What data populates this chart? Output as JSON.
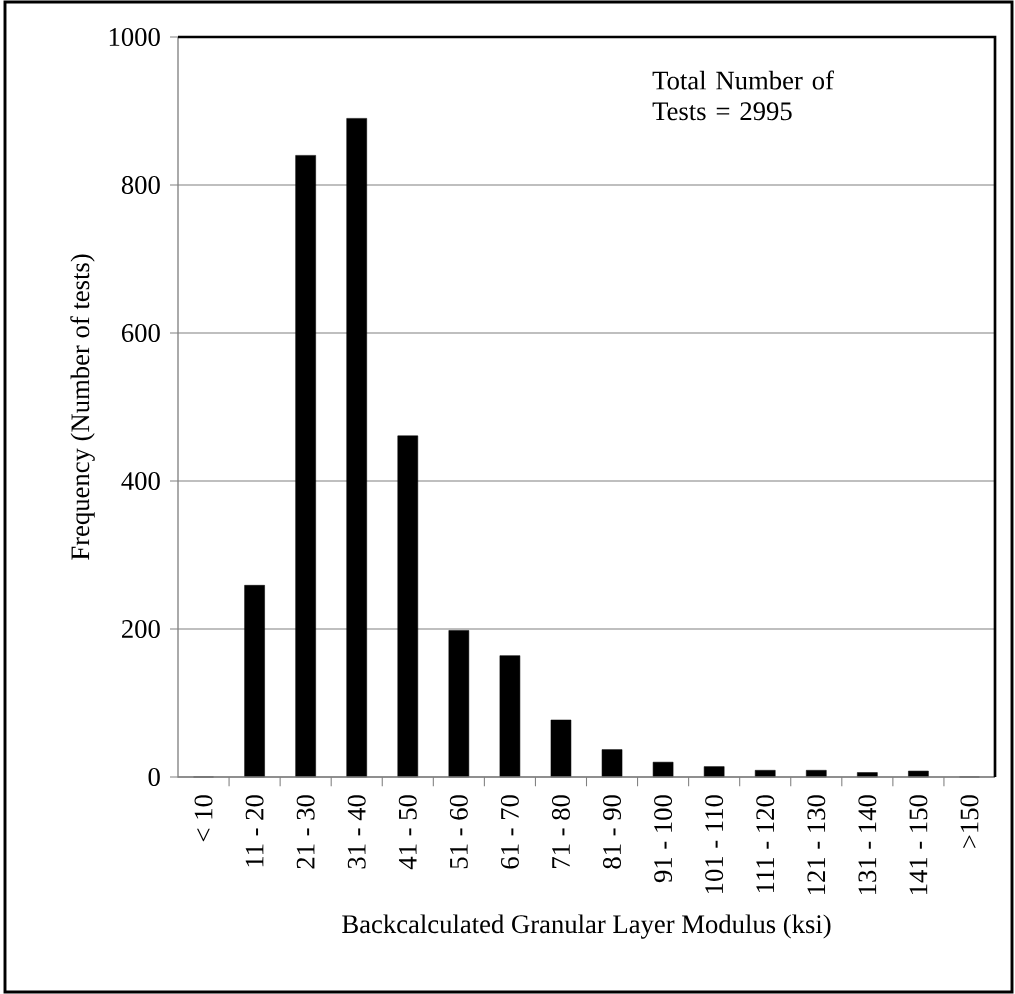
{
  "chart_data": {
    "type": "bar",
    "xlabel": "Backcalculated Granular Layer Modulus (ksi)",
    "ylabel": "Frequency (Number of tests)",
    "annotations": [
      "Total Number of Tests = 2995"
    ],
    "categories": [
      "< 10",
      "11 - 20",
      "21 - 30",
      "31 - 40",
      "41 - 50",
      "51 - 60",
      "61 - 70",
      "71 - 80",
      "81 - 90",
      "91 - 100",
      "101 - 110",
      "111 - 120",
      "121 - 130",
      "131 - 140",
      "141 - 150",
      ">150"
    ],
    "values": [
      0,
      259,
      840,
      890,
      461,
      198,
      164,
      77,
      37,
      20,
      14,
      9,
      9,
      6,
      8,
      0
    ],
    "color": "#000000",
    "ylim": [
      0,
      1000
    ],
    "yticks": [
      0,
      200,
      400,
      600,
      800,
      1000
    ],
    "grid": "y"
  }
}
